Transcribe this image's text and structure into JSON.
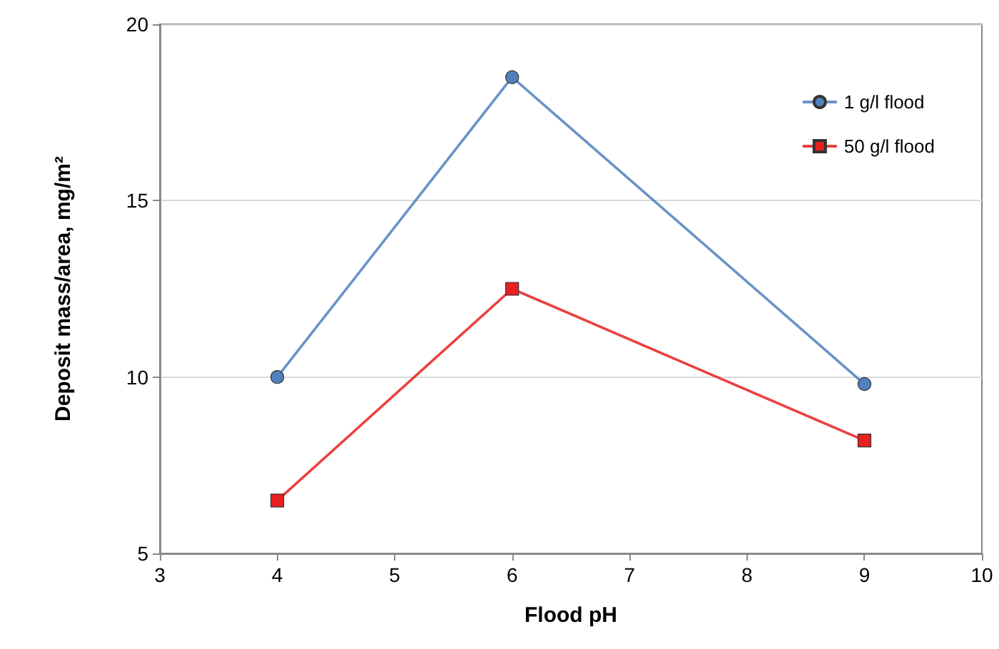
{
  "chart_data": {
    "type": "line",
    "xlabel": "Flood pH",
    "ylabel": "Deposit mass/area, mg/m²",
    "x": [
      4,
      6,
      9
    ],
    "series": [
      {
        "name": "1 g/l flood",
        "color": "#4f81bd",
        "values": [
          10,
          18.5,
          9.8
        ],
        "marker": "circle"
      },
      {
        "name": "50 g/l flood",
        "color": "#e82020",
        "values": [
          6.5,
          12.5,
          8.2
        ],
        "marker": "square"
      }
    ],
    "xlim": [
      3,
      10
    ],
    "xticks": [
      3,
      4,
      5,
      6,
      7,
      8,
      9,
      10
    ],
    "ylim": [
      5,
      20
    ],
    "yticks": [
      5,
      10,
      15,
      20
    ],
    "grid": "y",
    "legend": "top right",
    "line_style": "solid"
  }
}
